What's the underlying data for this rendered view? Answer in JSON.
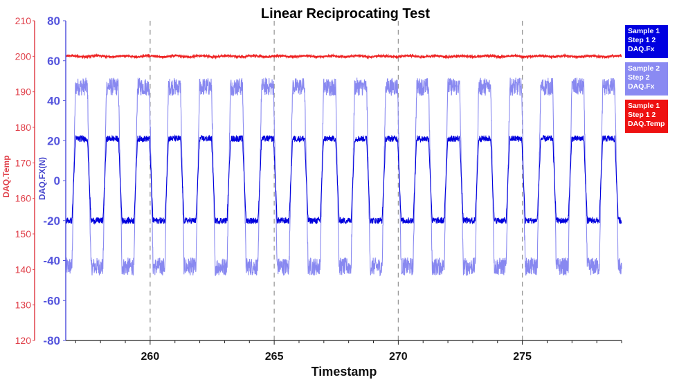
{
  "chart_data": {
    "type": "line",
    "title": "Linear Reciprocating Test",
    "xlabel": "Timestamp",
    "xlim": [
      256.6,
      279.0
    ],
    "xticks": [
      260,
      265,
      270,
      275
    ],
    "gridlines_x": [
      260,
      265,
      270,
      275
    ],
    "axes": {
      "left": {
        "label": "DAQ.Temp",
        "ylim": [
          120,
          210
        ],
        "ticks": [
          120,
          130,
          140,
          150,
          160,
          170,
          180,
          190,
          200,
          210
        ],
        "color": "#e0404a"
      },
      "right": {
        "label": "DAQ.FX(N)",
        "ylim": [
          -80,
          80
        ],
        "ticks": [
          -80,
          -60,
          -40,
          -20,
          0,
          20,
          40,
          60,
          80
        ],
        "color": "#5555dd"
      }
    },
    "series": [
      {
        "name": "Sample 1 Step 1 2 DAQ.Fx",
        "legend": "Sample 1\nStep 1 2\nDAQ.Fx",
        "axis": "right",
        "color": "#0000dd",
        "waveform": "square",
        "period": 1.25,
        "high": 21,
        "low": -20,
        "phase": 256.85
      },
      {
        "name": "Sample 2 Step 2 DAQ.Fx",
        "legend": "Sample 2\nStep 2\nDAQ.Fx",
        "axis": "right",
        "color": "#8888f0",
        "waveform": "square",
        "period": 1.25,
        "high": 47,
        "low": -43,
        "phase": 256.85
      },
      {
        "name": "Sample 1 Step 1 2 DAQ.Temp",
        "legend": "Sample 1\nStep 1 2\nDAQ.Temp",
        "axis": "left",
        "color": "#ee2222",
        "waveform": "flat",
        "value": 200
      }
    ],
    "legend_position": "right"
  }
}
